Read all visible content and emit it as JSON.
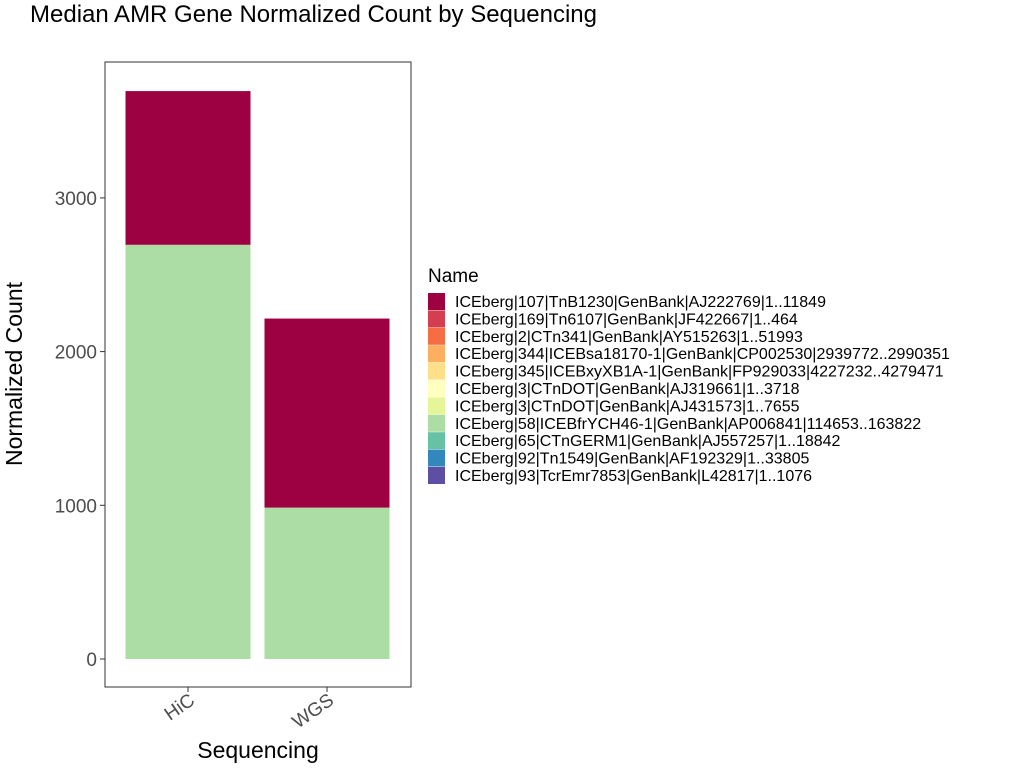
{
  "chart_data": {
    "type": "bar",
    "stacked": true,
    "title": "Median AMR Gene Normalized Count by Sequencing",
    "xlabel": "Sequencing",
    "ylabel": "Normalized Count",
    "categories": [
      "HiC",
      "WGS"
    ],
    "ylim": [
      0,
      3890
    ],
    "yticks": [
      0,
      1000,
      2000,
      3000
    ],
    "grid": false,
    "legend": {
      "title": "Name",
      "placement": "right",
      "entries": [
        {
          "label": "ICEberg|107|TnB1230|GenBank|AJ222769|1..11849",
          "color": "#9e0142"
        },
        {
          "label": "ICEberg|169|Tn6107|GenBank|JF422667|1..464",
          "color": "#d53e4f"
        },
        {
          "label": "ICEberg|2|CTn341|GenBank|AY515263|1..51993",
          "color": "#f46d43"
        },
        {
          "label": "ICEberg|344|ICEBsa18170-1|GenBank|CP002530|2939772..2990351",
          "color": "#fdae61"
        },
        {
          "label": "ICEberg|345|ICEBxyXB1A-1|GenBank|FP929033|4227232..4279471",
          "color": "#fee08b"
        },
        {
          "label": "ICEberg|3|CTnDOT|GenBank|AJ319661|1..3718",
          "color": "#ffffbf"
        },
        {
          "label": "ICEberg|3|CTnDOT|GenBank|AJ431573|1..7655",
          "color": "#e6f598"
        },
        {
          "label": "ICEberg|58|ICEBfrYCH46-1|GenBank|AP006841|114653..163822",
          "color": "#abdda4"
        },
        {
          "label": "ICEberg|65|CTnGERM1|GenBank|AJ557257|1..18842",
          "color": "#66c2a5"
        },
        {
          "label": "ICEberg|92|Tn1549|GenBank|AF192329|1..33805",
          "color": "#3288bd"
        },
        {
          "label": "ICEberg|93|TcrEmr7853|GenBank|L42817|1..1076",
          "color": "#5e4fa2"
        }
      ]
    },
    "series": [
      {
        "name": "ICEberg|58|ICEBfrYCH46-1|GenBank|AP006841|114653..163822",
        "color": "#abdda4",
        "values": [
          2695,
          985
        ]
      },
      {
        "name": "ICEberg|107|TnB1230|GenBank|AJ222769|1..11849",
        "color": "#9e0142",
        "values": [
          1000,
          1230
        ]
      }
    ]
  }
}
